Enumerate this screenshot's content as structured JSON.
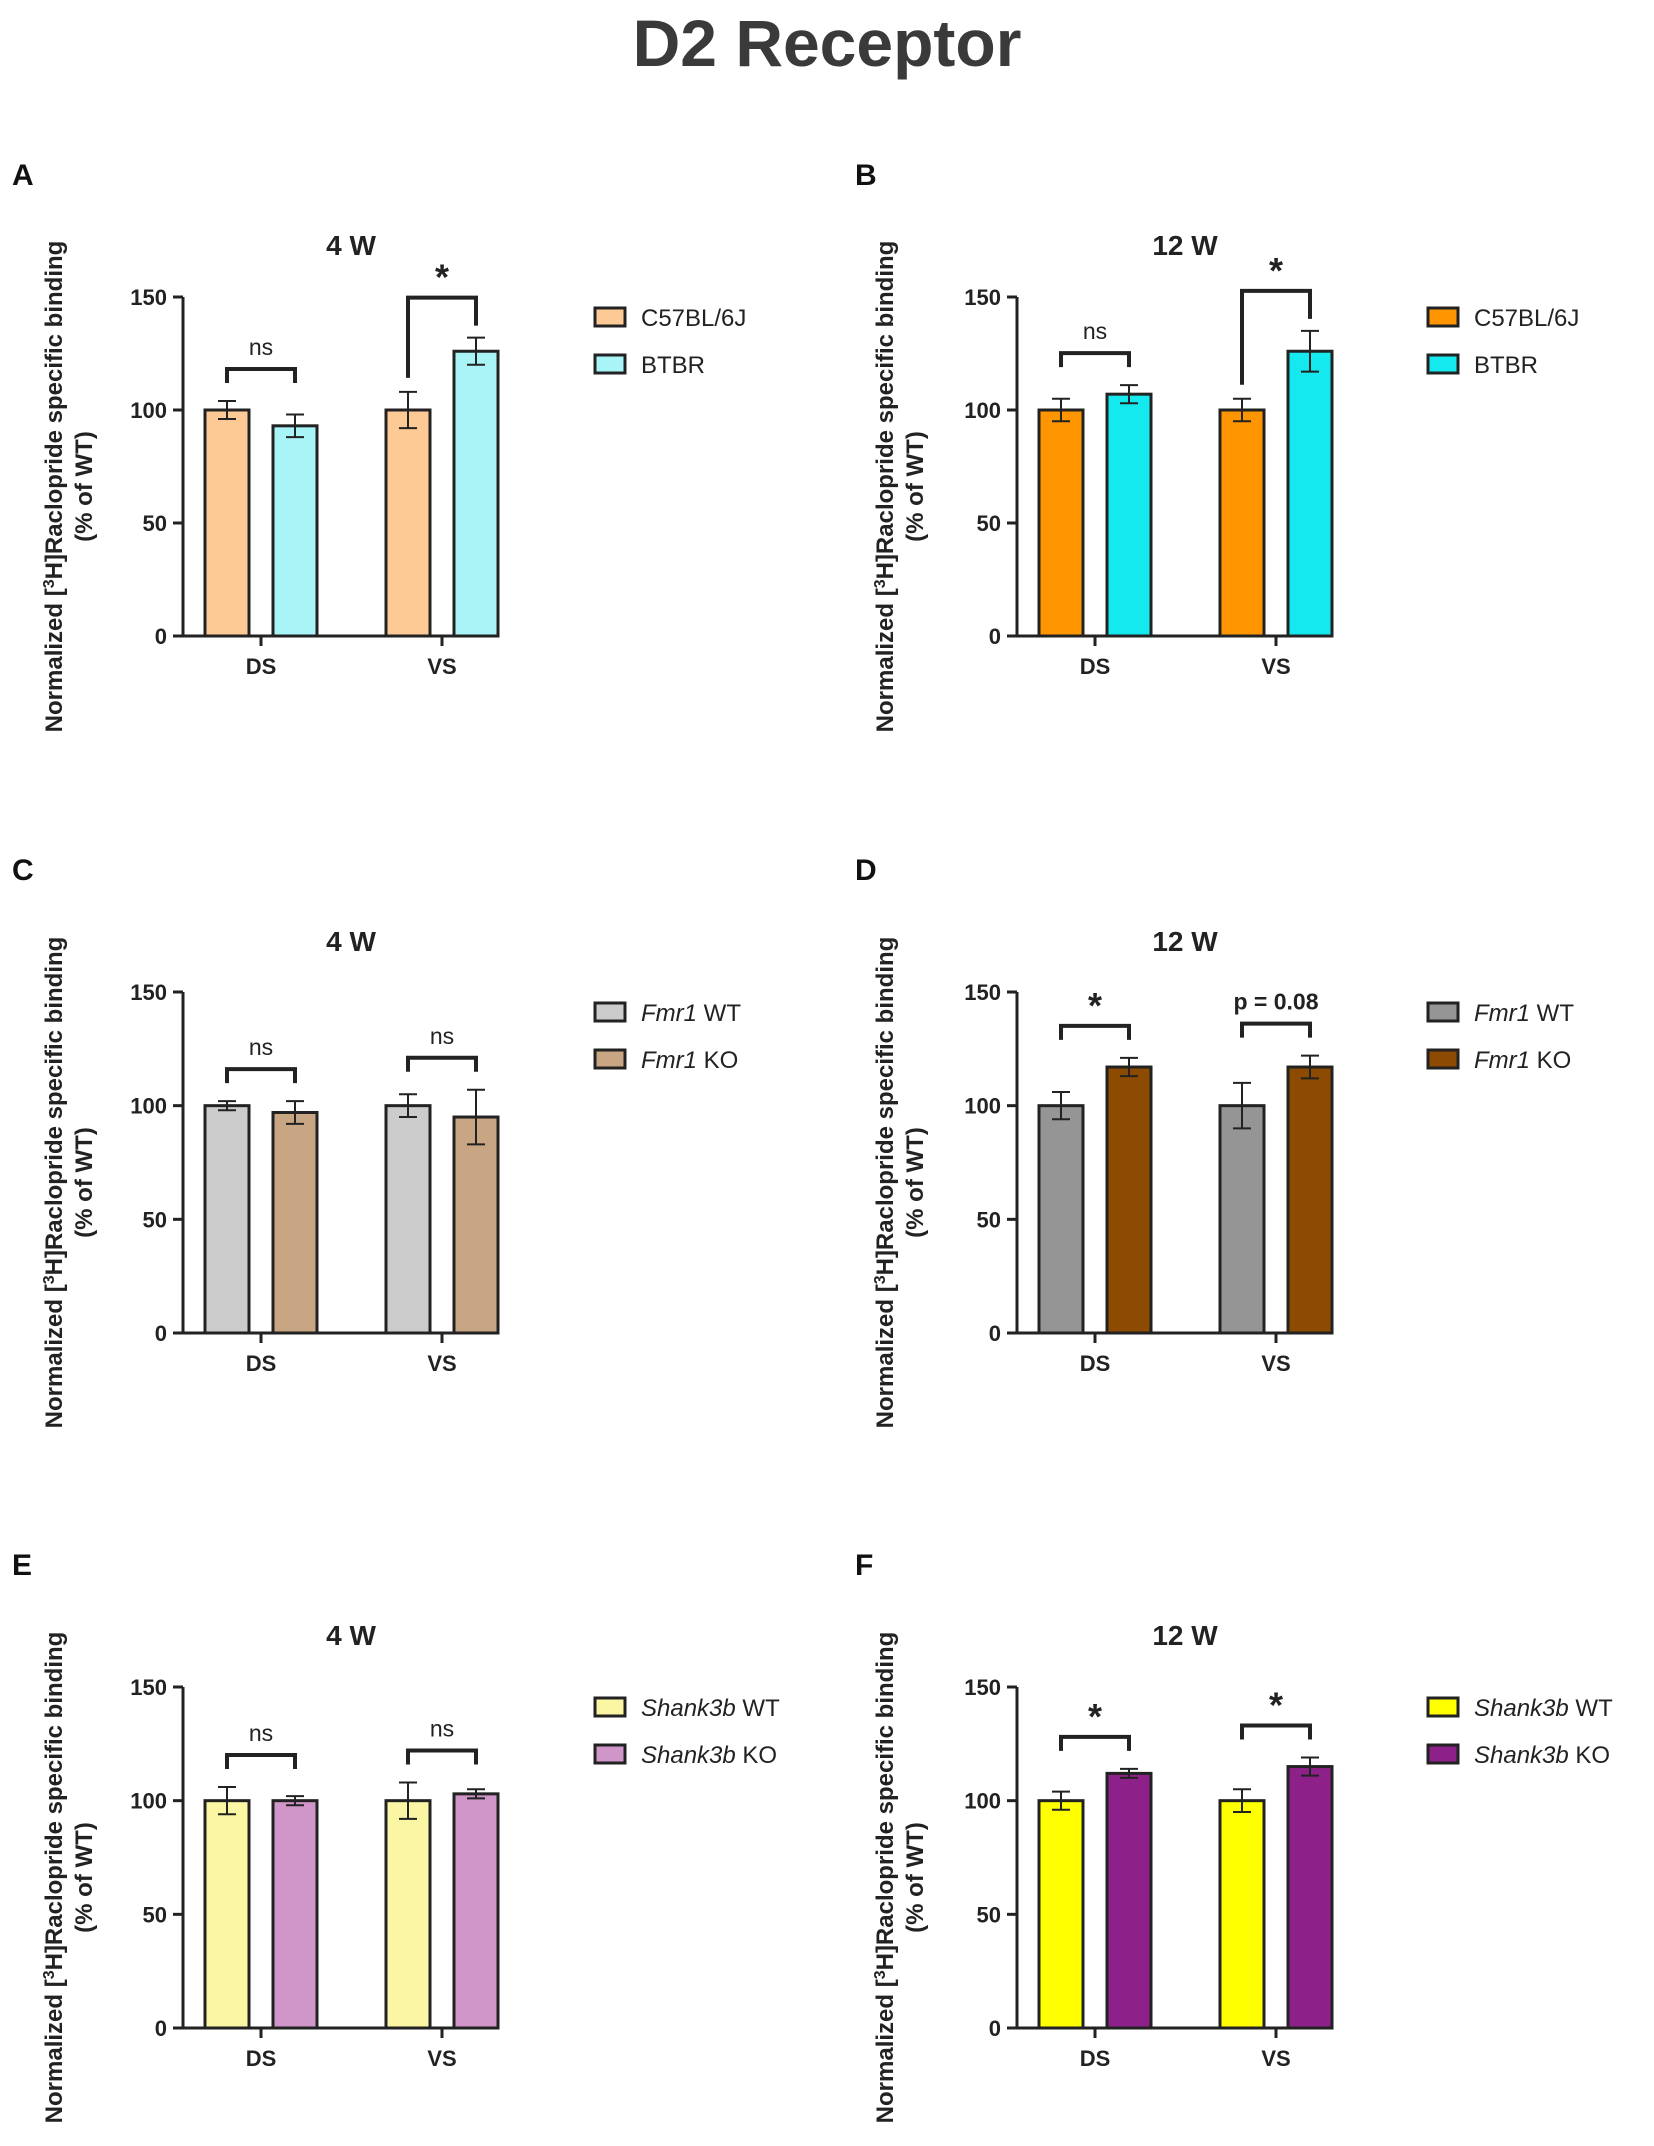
{
  "figure": {
    "title": "D2 Receptor"
  },
  "chart_data": [
    {
      "panel": "A",
      "type": "bar",
      "title": "4 W",
      "ylabel_line1": "Normalized [",
      "ylabel_sup": "3",
      "ylabel_line1_rest": "H]Raclopride specific binding",
      "ylabel_line2": "(% of WT)",
      "ylim": [
        0,
        150
      ],
      "yticks": [
        0,
        50,
        100,
        150
      ],
      "categories": [
        "DS",
        "VS"
      ],
      "series": [
        {
          "name": "C57BL/6J",
          "italic": "",
          "color": "#FDC994",
          "values": [
            100,
            100
          ],
          "errors": [
            4,
            8
          ]
        },
        {
          "name": "BTBR",
          "italic": "",
          "color": "#A9F4F7",
          "values": [
            93,
            126
          ],
          "errors": [
            5,
            6
          ]
        }
      ],
      "annotations": [
        {
          "category": "DS",
          "text": "ns",
          "big": false,
          "asymmetric": false
        },
        {
          "category": "VS",
          "text": "*",
          "big": true,
          "asymmetric": true
        }
      ]
    },
    {
      "panel": "B",
      "type": "bar",
      "title": "12 W",
      "ylabel_line1": "Normalized [",
      "ylabel_sup": "3",
      "ylabel_line1_rest": "H]Raclopride specific binding",
      "ylabel_line2": "(% of WT)",
      "ylim": [
        0,
        150
      ],
      "yticks": [
        0,
        50,
        100,
        150
      ],
      "categories": [
        "DS",
        "VS"
      ],
      "series": [
        {
          "name": "C57BL/6J",
          "italic": "",
          "color": "#FF9500",
          "values": [
            100,
            100
          ],
          "errors": [
            5,
            5
          ]
        },
        {
          "name": "BTBR",
          "italic": "",
          "color": "#14E9EF",
          "values": [
            107,
            126
          ],
          "errors": [
            4,
            9
          ]
        }
      ],
      "annotations": [
        {
          "category": "DS",
          "text": "ns",
          "big": false,
          "asymmetric": false
        },
        {
          "category": "VS",
          "text": "*",
          "big": true,
          "asymmetric": true
        }
      ]
    },
    {
      "panel": "C",
      "type": "bar",
      "title": "4 W",
      "ylabel_line1": "Normalized [",
      "ylabel_sup": "3",
      "ylabel_line1_rest": "H]Raclopride specific binding",
      "ylabel_line2": "(% of WT)",
      "ylim": [
        0,
        150
      ],
      "yticks": [
        0,
        50,
        100,
        150
      ],
      "categories": [
        "DS",
        "VS"
      ],
      "series": [
        {
          "name": "WT",
          "italic": "Fmr1",
          "color": "#CCCCCC",
          "values": [
            100,
            100
          ],
          "errors": [
            2,
            5
          ]
        },
        {
          "name": "KO",
          "italic": "Fmr1",
          "color": "#C9A683",
          "values": [
            97,
            95
          ],
          "errors": [
            5,
            12
          ]
        }
      ],
      "annotations": [
        {
          "category": "DS",
          "text": "ns",
          "big": false,
          "asymmetric": false
        },
        {
          "category": "VS",
          "text": "ns",
          "big": false,
          "asymmetric": false
        }
      ]
    },
    {
      "panel": "D",
      "type": "bar",
      "title": "12 W",
      "ylabel_line1": "Normalized [",
      "ylabel_sup": "3",
      "ylabel_line1_rest": "H]Raclopride specific binding",
      "ylabel_line2": "(% of WT)",
      "ylim": [
        0,
        150
      ],
      "yticks": [
        0,
        50,
        100,
        150
      ],
      "categories": [
        "DS",
        "VS"
      ],
      "series": [
        {
          "name": "WT",
          "italic": "Fmr1",
          "color": "#959595",
          "values": [
            100,
            100
          ],
          "errors": [
            6,
            10
          ]
        },
        {
          "name": "KO",
          "italic": "Fmr1",
          "color": "#8C4B00",
          "values": [
            117,
            117
          ],
          "errors": [
            4,
            5
          ]
        }
      ],
      "annotations": [
        {
          "category": "DS",
          "text": "*",
          "big": true,
          "asymmetric": false
        },
        {
          "category": "VS",
          "text": "p = 0.08",
          "big": false,
          "asymmetric": false,
          "serif": true
        }
      ]
    },
    {
      "panel": "E",
      "type": "bar",
      "title": "4 W",
      "ylabel_line1": "Normalized [",
      "ylabel_sup": "3",
      "ylabel_line1_rest": "H]Raclopride specific binding",
      "ylabel_line2": "(% of WT)",
      "ylim": [
        0,
        150
      ],
      "yticks": [
        0,
        50,
        100,
        150
      ],
      "categories": [
        "DS",
        "VS"
      ],
      "series": [
        {
          "name": "WT",
          "italic": "Shank3b",
          "color": "#FAF6A3",
          "values": [
            100,
            100
          ],
          "errors": [
            6,
            8
          ]
        },
        {
          "name": "KO",
          "italic": "Shank3b",
          "color": "#D095C9",
          "values": [
            100,
            103
          ],
          "errors": [
            2,
            2
          ]
        }
      ],
      "annotations": [
        {
          "category": "DS",
          "text": "ns",
          "big": false,
          "asymmetric": false
        },
        {
          "category": "VS",
          "text": "ns",
          "big": false,
          "asymmetric": false
        }
      ]
    },
    {
      "panel": "F",
      "type": "bar",
      "title": "12 W",
      "ylabel_line1": "Normalized [",
      "ylabel_sup": "3",
      "ylabel_line1_rest": "H]Raclopride specific binding",
      "ylabel_line2": "(% of WT)",
      "ylim": [
        0,
        150
      ],
      "yticks": [
        0,
        50,
        100,
        150
      ],
      "categories": [
        "DS",
        "VS"
      ],
      "series": [
        {
          "name": "WT",
          "italic": "Shank3b",
          "color": "#FFFF00",
          "values": [
            100,
            100
          ],
          "errors": [
            4,
            5
          ]
        },
        {
          "name": "KO",
          "italic": "Shank3b",
          "color": "#8E208A",
          "values": [
            112,
            115
          ],
          "errors": [
            2,
            4
          ]
        }
      ],
      "annotations": [
        {
          "category": "DS",
          "text": "*",
          "big": true,
          "asymmetric": false
        },
        {
          "category": "VS",
          "text": "*",
          "big": true,
          "asymmetric": false
        }
      ]
    }
  ]
}
